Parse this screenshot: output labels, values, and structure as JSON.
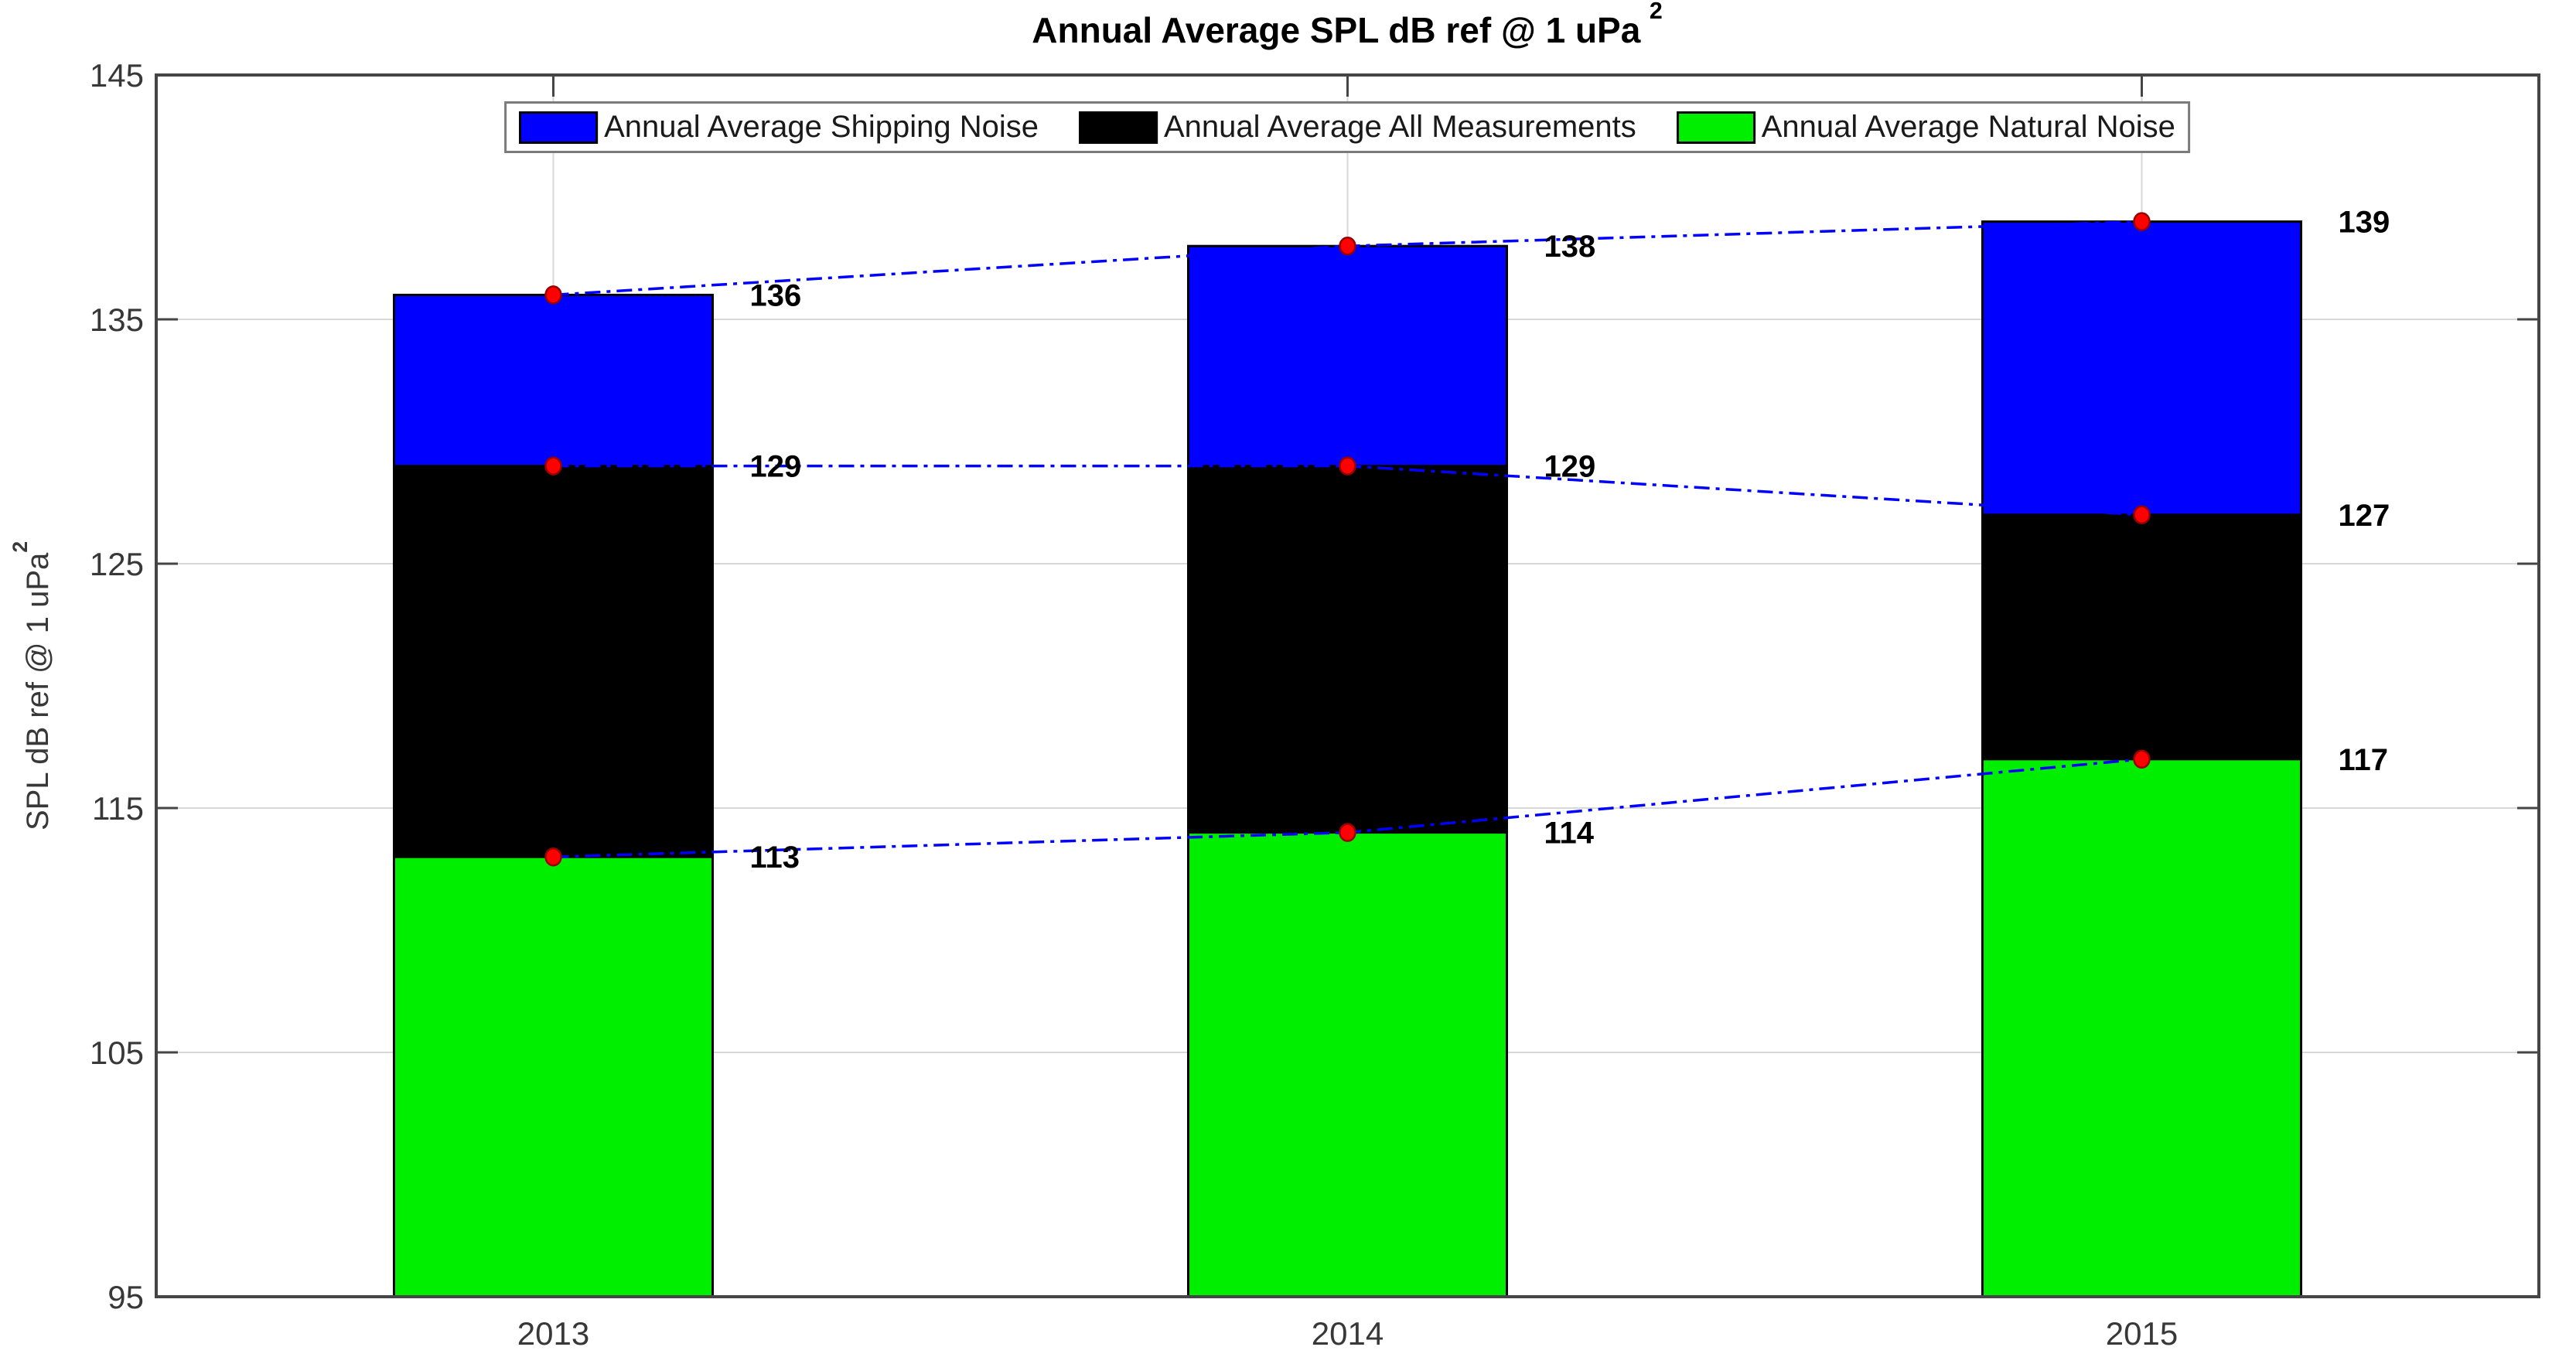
{
  "figure": {
    "title": "Annual Average SPL dB ref @ 1 uPa",
    "title_superscript": "2"
  },
  "axes": {
    "y_label": "SPL dB ref @ 1 uPa",
    "y_label_superscript": "2"
  },
  "chart_data": {
    "type": "bar",
    "title": "Annual Average SPL dB ref @ 1 uPa²",
    "ylabel": "SPL dB ref @ 1 uPa²",
    "xlabel": "",
    "categories": [
      "2013",
      "2014",
      "2015"
    ],
    "series": [
      {
        "name": "Annual Average Shipping Noise",
        "color": "#0000ff",
        "values": [
          136,
          138,
          139
        ]
      },
      {
        "name": "Annual Average All Measurements",
        "color": "#000000",
        "values": [
          129,
          129,
          127
        ]
      },
      {
        "name": "Annual Average Natural Noise",
        "color": "#00ee00",
        "values": [
          113,
          114,
          117
        ]
      }
    ],
    "baseline": 95,
    "ylim": [
      95,
      145
    ],
    "yticks": [
      95,
      105,
      115,
      125,
      135,
      145
    ],
    "grid": true,
    "bar_render": "overlaid from baseline 95 (tallest behind), appears stacked",
    "legend_position": "top-center-horizontal",
    "point_markers": {
      "shape": "circle",
      "fill": "#ff0000",
      "edge": "#990000",
      "at": "top of each series bar"
    },
    "connector_lines": {
      "style": "dash-dot",
      "color": "#0000ff",
      "connects": "same-series tops across years"
    },
    "data_labels": {
      "style": "bold black number right of each bar at its top level",
      "values_by_category": [
        [
          136,
          129,
          113
        ],
        [
          138,
          129,
          114
        ],
        [
          139,
          127,
          117
        ]
      ]
    },
    "style_colors": {
      "axis": "#454545",
      "grid": "#d8d8d8",
      "tick_label": "#383838",
      "bar_edge": "#000000",
      "background": "#ffffff"
    }
  }
}
